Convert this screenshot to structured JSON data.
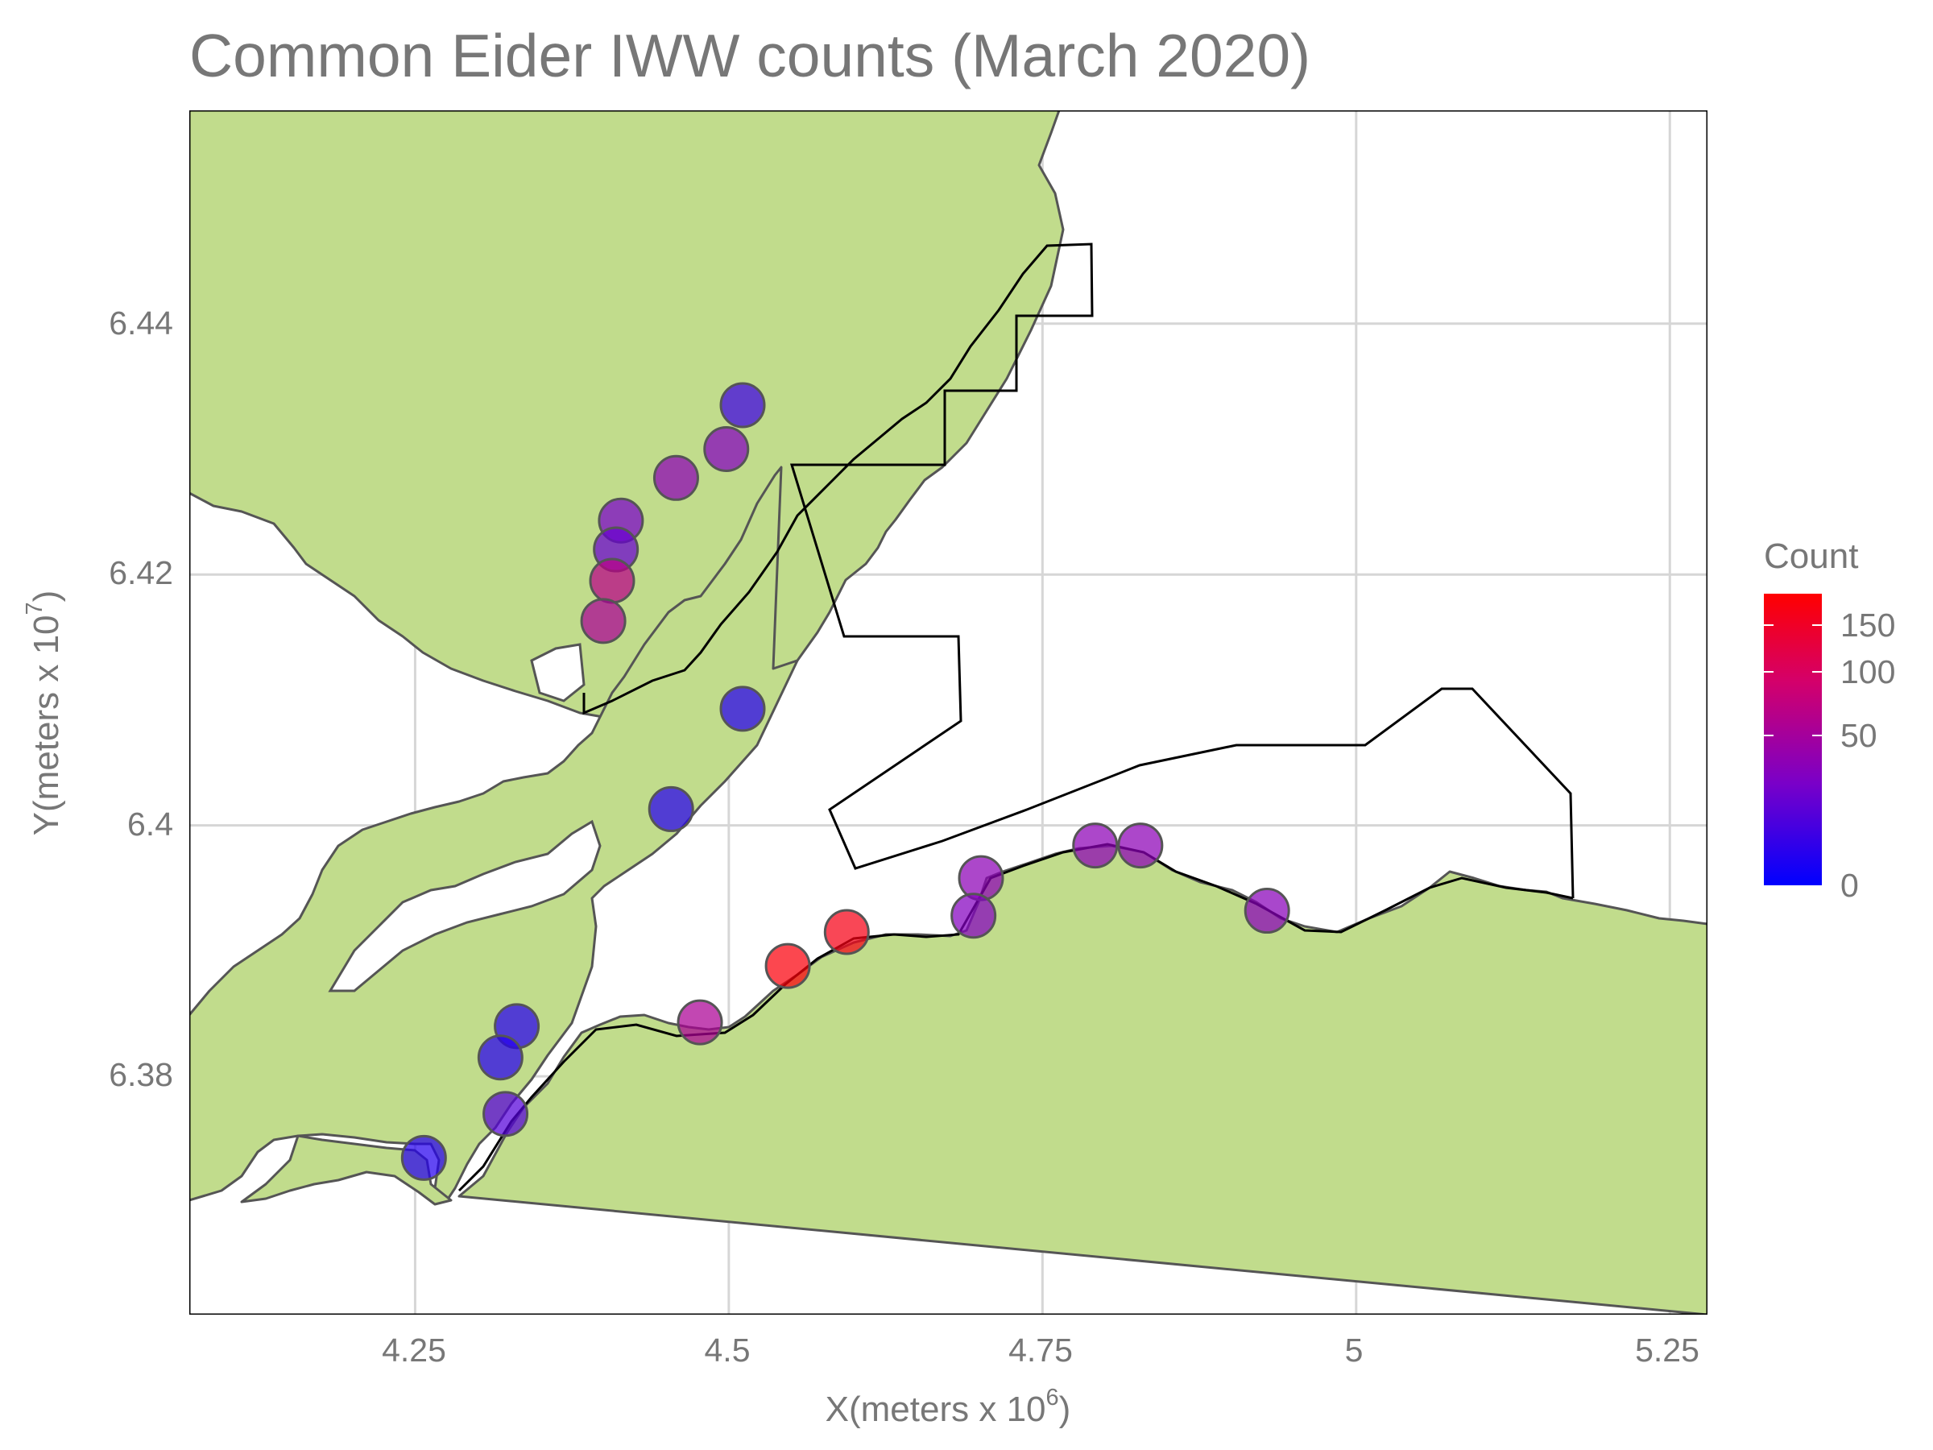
{
  "title": "Common Eider IWW counts (March 2020)",
  "x_axis": {
    "label": "X(meters x 10",
    "exponent": "6",
    "close": ")",
    "ticks": [
      "4.25",
      "4.5",
      "4.75",
      "5",
      "5.25"
    ]
  },
  "y_axis": {
    "label": "Y(meters x 10",
    "exponent": "7",
    "close": ")",
    "ticks": [
      "6.44",
      "6.42",
      "6.4",
      "6.38"
    ]
  },
  "legend": {
    "title": "Count",
    "ticks": [
      "150",
      "100",
      "50",
      "0"
    ],
    "color_low": "#0000ff",
    "color_high": "#ff0000"
  },
  "colors": {
    "land": "#c1dc8c",
    "water": "#ffffff",
    "grid": "#d6d6d6",
    "coast": "#555555",
    "boundary": "#000000"
  },
  "chart_data": {
    "type": "scatter",
    "title": "Common Eider IWW counts (March 2020)",
    "xlabel": "X(meters x 10^6)",
    "ylabel": "Y(meters x 10^7)",
    "xlim": [
      4.07,
      5.28
    ],
    "ylim": [
      6.361,
      6.457
    ],
    "x_ticks": [
      4.25,
      4.5,
      4.75,
      5.0,
      5.25
    ],
    "y_ticks": [
      6.38,
      6.4,
      6.42,
      6.44
    ],
    "grid": true,
    "legend_position": "right",
    "color_scale": {
      "name": "Count",
      "min": 0,
      "max": 170,
      "low": "blue",
      "high": "red",
      "transform": "sqrt",
      "breaks": [
        0,
        50,
        100,
        150
      ]
    },
    "points": [
      {
        "x": 4.511,
        "y": 6.4335,
        "count": 5
      },
      {
        "x": 4.498,
        "y": 6.43,
        "count": 25
      },
      {
        "x": 4.458,
        "y": 6.4277,
        "count": 30
      },
      {
        "x": 4.414,
        "y": 6.4243,
        "count": 20
      },
      {
        "x": 4.41,
        "y": 6.422,
        "count": 15
      },
      {
        "x": 4.407,
        "y": 6.4195,
        "count": 60
      },
      {
        "x": 4.4,
        "y": 6.4163,
        "count": 50
      },
      {
        "x": 4.511,
        "y": 6.4093,
        "count": 2
      },
      {
        "x": 4.454,
        "y": 6.4013,
        "count": 2
      },
      {
        "x": 4.594,
        "y": 6.3915,
        "count": 150
      },
      {
        "x": 4.547,
        "y": 6.3888,
        "count": 160
      },
      {
        "x": 4.477,
        "y": 6.3843,
        "count": 50
      },
      {
        "x": 4.701,
        "y": 6.3958,
        "count": 30
      },
      {
        "x": 4.695,
        "y": 6.3928,
        "count": 25
      },
      {
        "x": 4.792,
        "y": 6.3984,
        "count": 30
      },
      {
        "x": 4.828,
        "y": 6.3984,
        "count": 30
      },
      {
        "x": 4.929,
        "y": 6.3932,
        "count": 28
      },
      {
        "x": 4.331,
        "y": 6.384,
        "count": 2
      },
      {
        "x": 4.318,
        "y": 6.3815,
        "count": 2
      },
      {
        "x": 4.322,
        "y": 6.377,
        "count": 10
      },
      {
        "x": 4.257,
        "y": 6.3735,
        "count": 2
      }
    ]
  }
}
